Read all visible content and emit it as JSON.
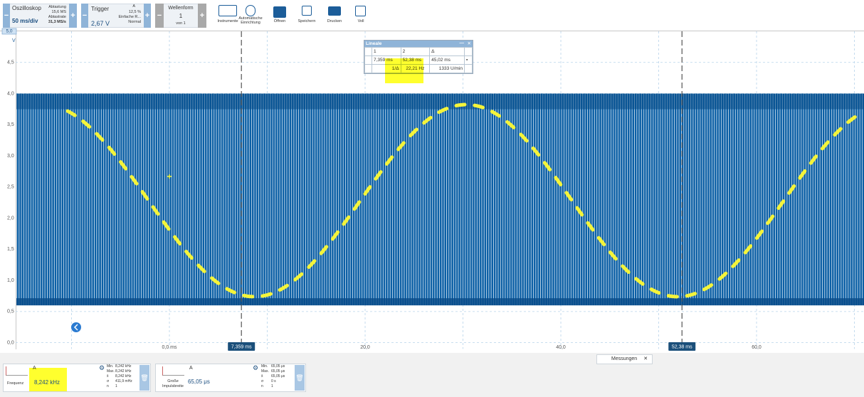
{
  "toolbar": {
    "scope": {
      "title": "Oszilloskop",
      "timebase": "50 ms/div",
      "samples_label": "Abtastung",
      "samples": "15,6 MS",
      "rate_label": "Abtastrate",
      "rate": "31,3 MS/s"
    },
    "trigger": {
      "title": "Trigger",
      "level": "2,67 V",
      "channel": "A",
      "pretrigger": "12,5 %",
      "kind": "Einfache R...",
      "mode": "Normal"
    },
    "waveform": {
      "title": "Wellenform",
      "index": "1",
      "count": "von 1"
    },
    "buttons": [
      "Instrumente",
      "Automatische Einrichtung",
      "Öffnen",
      "Speichern",
      "Drucken",
      "Voll"
    ]
  },
  "chart_data": {
    "type": "oscilloscope",
    "y_unit": "V",
    "ylim": [
      -0.1,
      5.0
    ],
    "yticks": [
      {
        "value": 0,
        "label": "0,0"
      },
      {
        "value": 0.5,
        "label": "0,5"
      },
      {
        "value": 1,
        "label": "1,0"
      },
      {
        "value": 1.5,
        "label": "1,5"
      },
      {
        "value": 2,
        "label": "2,0"
      },
      {
        "value": 2.5,
        "label": "2,5"
      },
      {
        "value": 3,
        "label": "3,0"
      },
      {
        "value": 3.5,
        "label": "3,5"
      },
      {
        "value": 4,
        "label": "4,0"
      },
      {
        "value": 4.5,
        "label": "4,5"
      },
      {
        "value": 5,
        "label": "5,0"
      }
    ],
    "xlim": [
      -15.71,
      70.98
    ],
    "xticks": [
      {
        "value": 0,
        "label": "0,0 ms"
      },
      {
        "value": 20,
        "label": "20,0"
      },
      {
        "value": 40,
        "label": "40,0"
      },
      {
        "value": 60,
        "label": "60,0"
      }
    ],
    "xgrid_minor": [
      -10,
      10,
      30,
      50,
      70
    ],
    "grid": true,
    "signal": {
      "low": 0.6,
      "high": 4.0,
      "color": "#0b5fa5"
    },
    "rulers": [
      {
        "value": 7.359,
        "label": "7,359 ms"
      },
      {
        "value": 52.38,
        "label": "52,38 ms"
      }
    ],
    "ruler_table": {
      "title": "Lineale",
      "header": [
        "1",
        "2",
        "Δ"
      ],
      "times": [
        "7,359 ms",
        "52,38 ms",
        "45,02 ms"
      ],
      "inverse": [
        "1/Δ",
        "22,21 Hz",
        "1333 U/min"
      ]
    }
  },
  "measurements": {
    "tab": "Messungen",
    "items": [
      {
        "channel": "A",
        "name": "Frequenz",
        "value": "8,242 kHz",
        "stats": [
          [
            "Min.",
            "8,242 kHz"
          ],
          [
            "Max.",
            "8,242 kHz"
          ],
          [
            "x̄",
            "8,242 kHz"
          ],
          [
            "σ",
            "411,9 mHz"
          ],
          [
            "n",
            "1"
          ]
        ]
      },
      {
        "channel": "A",
        "name": "Große Impulsbreite",
        "value": "65,05 μs",
        "stats": [
          [
            "Min.",
            "65,05 μs"
          ],
          [
            "Max.",
            "65,05 μs"
          ],
          [
            "x̄",
            "65,05 μs"
          ],
          [
            "σ",
            "0 s"
          ],
          [
            "n",
            "1"
          ]
        ]
      }
    ]
  }
}
